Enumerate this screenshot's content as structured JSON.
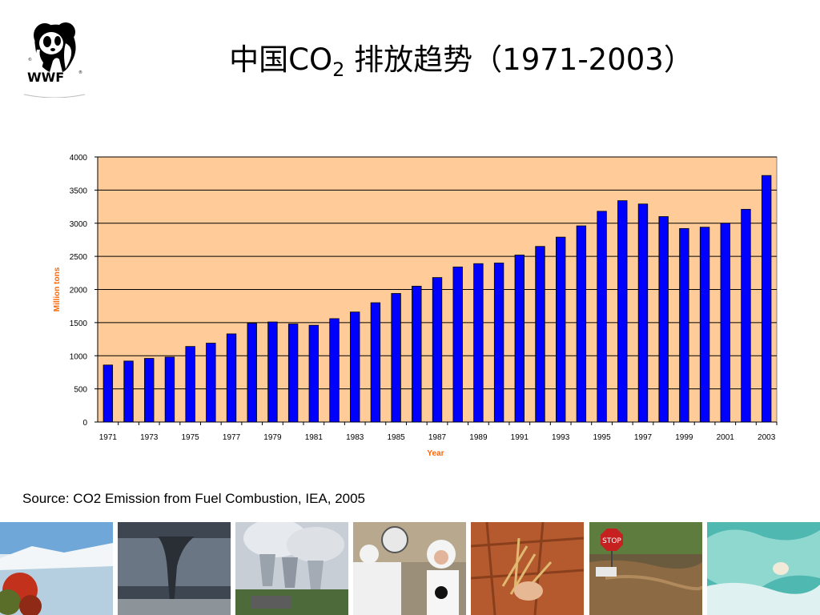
{
  "title": {
    "main": "中国CO",
    "sub": "2",
    "rest": " 排放趋势（1971-2003）"
  },
  "logo": {
    "text": "WWF",
    "icon": "panda-icon"
  },
  "source": "Source: CO2 Emission from Fuel Combustion, IEA, 2005",
  "colors": {
    "plot_bg": "#FFCC99",
    "bar": "#0000FF",
    "axis_title": "#FF6600"
  },
  "chart_data": {
    "type": "bar",
    "xlabel": "Year",
    "ylabel": "Million tons",
    "ylim": [
      0,
      4000
    ],
    "yticks": [
      0,
      500,
      1000,
      1500,
      2000,
      2500,
      3000,
      3500,
      4000
    ],
    "grid": true,
    "categories": [
      1971,
      1972,
      1973,
      1974,
      1975,
      1976,
      1977,
      1978,
      1979,
      1980,
      1981,
      1982,
      1983,
      1984,
      1985,
      1986,
      1987,
      1988,
      1989,
      1990,
      1991,
      1992,
      1993,
      1994,
      1995,
      1996,
      1997,
      1998,
      1999,
      2000,
      2001,
      2002,
      2003
    ],
    "xtick_labels": [
      "1971",
      "1973",
      "1975",
      "1977",
      "1979",
      "1981",
      "1983",
      "1985",
      "1987",
      "1989",
      "1991",
      "1993",
      "1995",
      "1997",
      "1999",
      "2001",
      "2003"
    ],
    "values": [
      860,
      920,
      960,
      980,
      1140,
      1190,
      1330,
      1490,
      1510,
      1480,
      1460,
      1560,
      1660,
      1800,
      1940,
      2050,
      2180,
      2340,
      2390,
      2400,
      2520,
      2650,
      2790,
      2960,
      3180,
      3340,
      3290,
      3100,
      2920,
      2940,
      3000,
      3210,
      3720
    ]
  },
  "photos": [
    {
      "name": "glacier-photo"
    },
    {
      "name": "tornado-photo"
    },
    {
      "name": "power-plant-photo"
    },
    {
      "name": "polar-bear-protest-photo"
    },
    {
      "name": "drought-photo"
    },
    {
      "name": "flood-stop-sign-photo"
    },
    {
      "name": "melting-ice-photo"
    }
  ]
}
